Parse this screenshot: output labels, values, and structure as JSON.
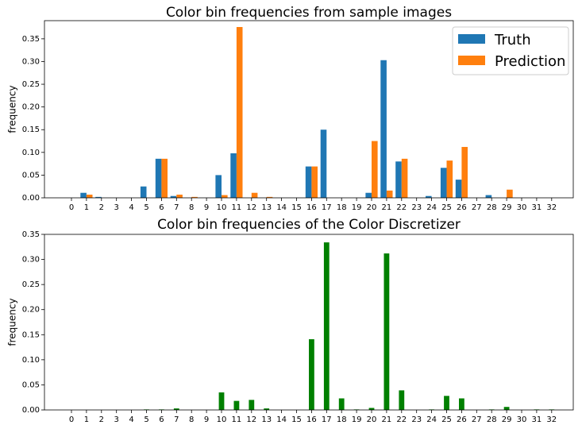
{
  "chart_data": [
    {
      "type": "bar",
      "title": "Color bin frequencies from sample images",
      "xlabel": "",
      "ylabel": "frequency",
      "ylim": [
        0,
        0.39
      ],
      "yticks": [
        0.0,
        0.05,
        0.1,
        0.15,
        0.2,
        0.25,
        0.3,
        0.35
      ],
      "ytick_labels": [
        "0.00",
        "0.05",
        "0.10",
        "0.15",
        "0.20",
        "0.25",
        "0.30",
        "0.35"
      ],
      "grid": false,
      "legend_position": "top-right",
      "categories": [
        "0",
        "1",
        "2",
        "3",
        "4",
        "5",
        "6",
        "7",
        "8",
        "9",
        "10",
        "11",
        "12",
        "13",
        "14",
        "15",
        "16",
        "17",
        "18",
        "19",
        "20",
        "21",
        "22",
        "23",
        "24",
        "25",
        "26",
        "27",
        "28",
        "29",
        "30",
        "31",
        "32"
      ],
      "series": [
        {
          "name": "Truth",
          "color": "#1f77b4",
          "values": [
            0,
            0.011,
            0.002,
            0,
            0,
            0.025,
            0.086,
            0.004,
            0,
            0,
            0.05,
            0.098,
            0,
            0,
            0,
            0,
            0.069,
            0.15,
            0,
            0,
            0.011,
            0.303,
            0.08,
            0,
            0.004,
            0.066,
            0.04,
            0,
            0.006,
            0,
            0,
            0,
            0
          ]
        },
        {
          "name": "Prediction",
          "color": "#ff7f0e",
          "values": [
            0,
            0.007,
            0,
            0,
            0,
            0,
            0.086,
            0.007,
            0.002,
            0,
            0.006,
            0.376,
            0.011,
            0.002,
            0,
            0,
            0.069,
            0,
            0,
            0,
            0.125,
            0.016,
            0.086,
            0,
            0,
            0.082,
            0.112,
            0,
            0,
            0.018,
            0,
            0,
            0
          ]
        }
      ]
    },
    {
      "type": "bar",
      "title": "Color bin frequencies of the Color Discretizer",
      "xlabel": "",
      "ylabel": "frequency",
      "ylim": [
        0,
        0.35
      ],
      "yticks": [
        0.0,
        0.05,
        0.1,
        0.15,
        0.2,
        0.25,
        0.3,
        0.35
      ],
      "ytick_labels": [
        "0.00",
        "0.05",
        "0.10",
        "0.15",
        "0.20",
        "0.25",
        "0.30",
        "0.35"
      ],
      "grid": false,
      "categories": [
        "0",
        "1",
        "2",
        "3",
        "4",
        "5",
        "6",
        "7",
        "8",
        "9",
        "10",
        "11",
        "12",
        "13",
        "14",
        "15",
        "16",
        "17",
        "18",
        "19",
        "20",
        "21",
        "22",
        "23",
        "24",
        "25",
        "26",
        "27",
        "28",
        "29",
        "30",
        "31",
        "32"
      ],
      "series": [
        {
          "color": "#008000",
          "values": [
            0,
            0,
            0,
            0,
            0,
            0.001,
            0.001,
            0.003,
            0,
            0,
            0.035,
            0.018,
            0.02,
            0.003,
            0,
            0,
            0.141,
            0.334,
            0.023,
            0.001,
            0.004,
            0.312,
            0.039,
            0,
            0.001,
            0.028,
            0.023,
            0,
            0.001,
            0.006,
            0,
            0.001,
            0.001
          ]
        }
      ]
    }
  ]
}
